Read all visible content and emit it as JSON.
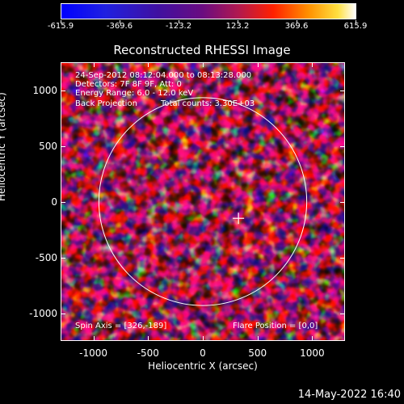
{
  "colorbar": {
    "tick_labels": [
      "-615.9",
      "-369.6",
      "-123.2",
      "123.2",
      "369.6",
      "615.9"
    ],
    "values": [
      -615.9,
      -369.6,
      -123.2,
      123.2,
      369.6,
      615.9
    ]
  },
  "title": "Reconstructed RHESSI Image",
  "info": {
    "time_range": "24-Sep-2012 08:12:04.000 to 08:13:28.000",
    "detectors": "Detectors: 7F 8F 9F, Att: 0",
    "energy": "Energy Range: 6.0 - 12.0 keV",
    "method": "Back Projection",
    "counts": "Total counts: 3.30E+03",
    "spin_axis": "Spin Axis = [326,-189]",
    "flare_position": "Flare Position = [0,0]"
  },
  "axes": {
    "xlabel": "Heliocentric X (arcsec)",
    "ylabel": "Heliocentric Y (arcsec)",
    "xlim": [
      -1300,
      1300
    ],
    "ylim": [
      -1250,
      1250
    ],
    "x_ticks": [
      -1000,
      -500,
      0,
      500,
      1000
    ],
    "x_tick_labels": [
      "-1000",
      "-500",
      "0",
      "500",
      "1000"
    ],
    "y_ticks": [
      1000,
      500,
      0,
      -500,
      -1000
    ],
    "y_tick_labels": [
      "1000",
      "500",
      "0",
      "-500",
      "-1000"
    ]
  },
  "solar_disk_radius_arcsec": 950,
  "marker_position_arcsec": [
    326,
    -150
  ],
  "colors": {
    "background": "#000000",
    "foreground": "#ffffff",
    "low": "#1a1aff",
    "mid": "#5a0c8a",
    "high": "#ff3000",
    "peak": "#ffffe0"
  },
  "timestamp": "14-May-2022 16:40"
}
